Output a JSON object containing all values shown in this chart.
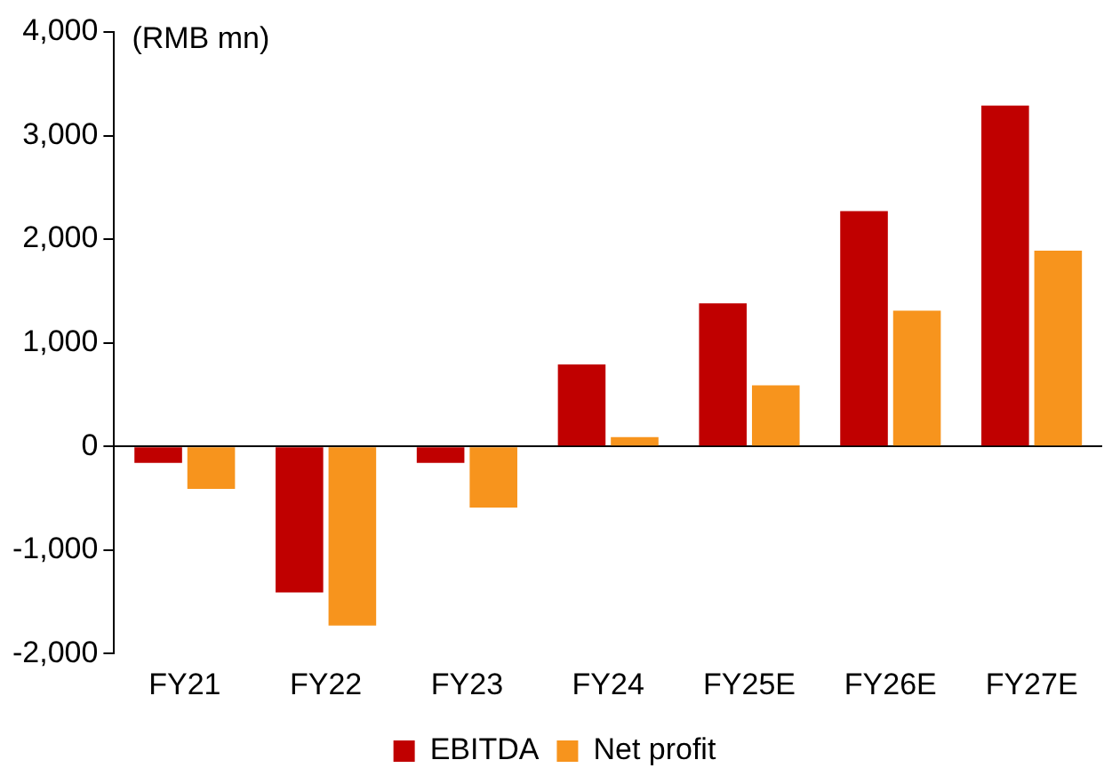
{
  "chart_data": {
    "type": "bar",
    "ylabel": "(RMB mn)",
    "categories": [
      "FY21",
      "FY22",
      "FY23",
      "FY24",
      "FY25E",
      "FY26E",
      "FY27E"
    ],
    "series": [
      {
        "name": "EBITDA",
        "color": "#c00000",
        "values": [
          -160,
          -1410,
          -160,
          790,
          1380,
          2270,
          3290
        ]
      },
      {
        "name": "Net profit",
        "color": "#f7941d",
        "values": [
          -410,
          -1730,
          -590,
          90,
          590,
          1310,
          1890
        ]
      }
    ],
    "ylim": [
      -2000,
      4000
    ],
    "yticks": [
      {
        "value": -2000,
        "label": "-2,000"
      },
      {
        "value": -1000,
        "label": "-1,000"
      },
      0,
      {
        "value": 1000,
        "label": "1,000"
      },
      {
        "value": 2000,
        "label": "2,000"
      },
      {
        "value": 3000,
        "label": "3,000"
      },
      {
        "value": 4000,
        "label": "4,000"
      }
    ],
    "legend": "bottom"
  }
}
